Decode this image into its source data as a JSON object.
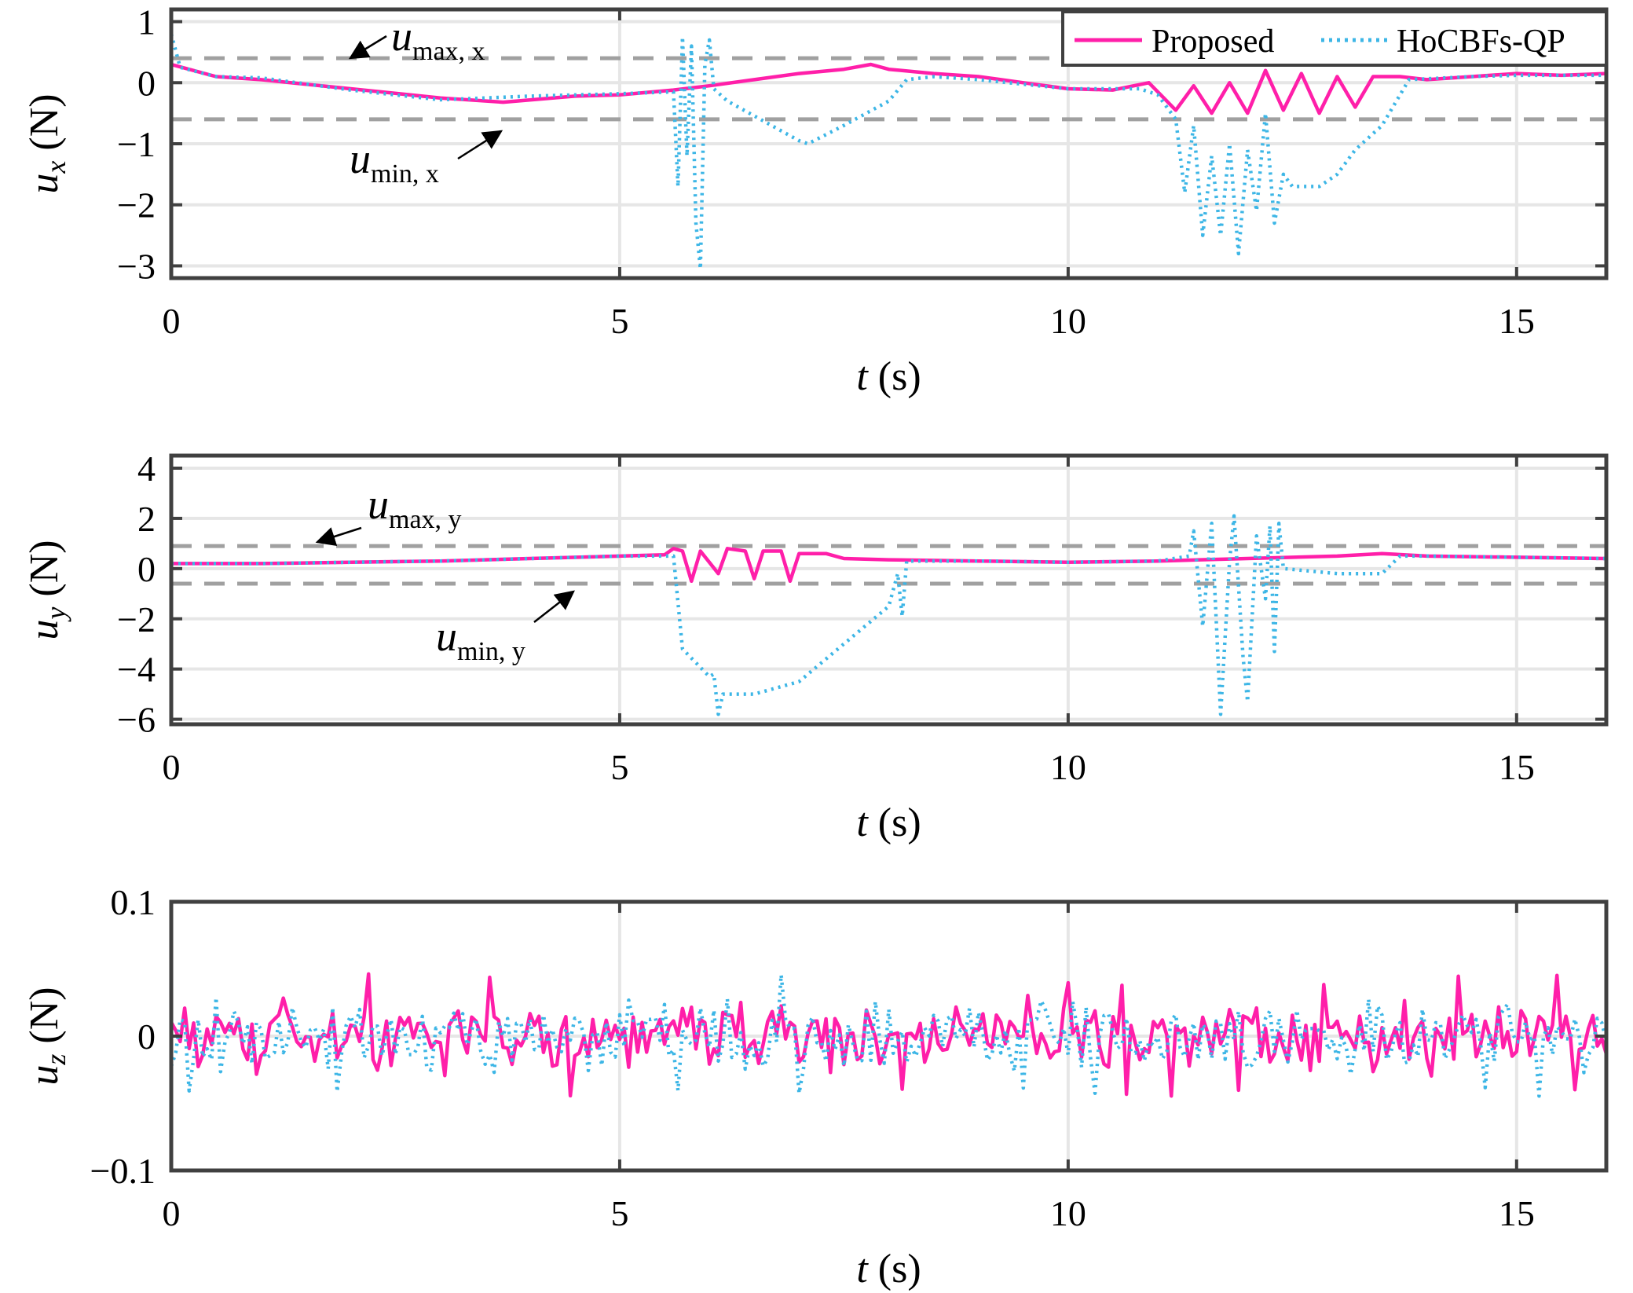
{
  "colors": {
    "proposed": "#ff1fa9",
    "hocbfs": "#3db6e6",
    "limit": "#a0a0a0",
    "grid": "#e6e6e6",
    "axes": "#404040"
  },
  "legend": {
    "proposed_label": "Proposed",
    "hocbfs_label": "HoCBFs-QP",
    "placement": "top-right of first panel"
  },
  "annotations": {
    "umax_x": {
      "sym": "u",
      "sub": "max, x"
    },
    "umin_x": {
      "sym": "u",
      "sub": "min, x"
    },
    "umax_y": {
      "sym": "u",
      "sub": "max, y"
    },
    "umin_y": {
      "sym": "u",
      "sub": "min, y"
    }
  },
  "chart_data": [
    {
      "type": "line",
      "ylabel_sym": "u",
      "ylabel_sub": "x",
      "ylabel_unit": "(N)",
      "xlabel_sym": "t",
      "xlabel_unit": "(s)",
      "xlim": [
        0,
        16
      ],
      "ylim": [
        -3.2,
        1.2
      ],
      "xticks": [
        "0",
        "5",
        "10",
        "15"
      ],
      "xtick_values": [
        0,
        5,
        10,
        15
      ],
      "yticks": [
        "1",
        "0",
        "−1",
        "−2",
        "−3"
      ],
      "ytick_values": [
        1,
        0,
        -1,
        -2,
        -3
      ],
      "grid": true,
      "limits": {
        "max": 0.4,
        "min": -0.6
      },
      "series": [
        {
          "name": "Proposed",
          "style": "solid",
          "points": [
            [
              0,
              0.3
            ],
            [
              0.5,
              0.1
            ],
            [
              1,
              0.05
            ],
            [
              2,
              -0.1
            ],
            [
              3,
              -0.25
            ],
            [
              3.7,
              -0.32
            ],
            [
              4.5,
              -0.22
            ],
            [
              5,
              -0.2
            ],
            [
              5.6,
              -0.12
            ],
            [
              6,
              -0.05
            ],
            [
              6.5,
              0.05
            ],
            [
              7,
              0.15
            ],
            [
              7.5,
              0.22
            ],
            [
              7.8,
              0.3
            ],
            [
              8,
              0.22
            ],
            [
              8.5,
              0.15
            ],
            [
              9,
              0.1
            ],
            [
              9.5,
              0.0
            ],
            [
              10,
              -0.1
            ],
            [
              10.5,
              -0.12
            ],
            [
              10.9,
              0.0
            ],
            [
              11.2,
              -0.45
            ],
            [
              11.4,
              -0.05
            ],
            [
              11.6,
              -0.5
            ],
            [
              11.8,
              0.0
            ],
            [
              12.0,
              -0.5
            ],
            [
              12.2,
              0.2
            ],
            [
              12.4,
              -0.45
            ],
            [
              12.6,
              0.15
            ],
            [
              12.8,
              -0.5
            ],
            [
              13.0,
              0.1
            ],
            [
              13.2,
              -0.4
            ],
            [
              13.4,
              0.1
            ],
            [
              13.7,
              0.1
            ],
            [
              14,
              0.05
            ],
            [
              14.5,
              0.1
            ],
            [
              15,
              0.15
            ],
            [
              15.5,
              0.12
            ],
            [
              16,
              0.15
            ]
          ]
        },
        {
          "name": "HoCBFs-QP",
          "style": "dotted",
          "points": [
            [
              0,
              0.8
            ],
            [
              0.1,
              0.25
            ],
            [
              0.5,
              0.1
            ],
            [
              1,
              0.08
            ],
            [
              2,
              -0.12
            ],
            [
              3,
              -0.28
            ],
            [
              4,
              -0.22
            ],
            [
              5,
              -0.18
            ],
            [
              5.6,
              -0.15
            ],
            [
              5.65,
              -1.7
            ],
            [
              5.7,
              0.75
            ],
            [
              5.75,
              -1.2
            ],
            [
              5.8,
              0.6
            ],
            [
              5.85,
              -2.3
            ],
            [
              5.9,
              -3.05
            ],
            [
              5.95,
              0.3
            ],
            [
              6.0,
              0.7
            ],
            [
              6.05,
              -0.1
            ],
            [
              6.2,
              -0.3
            ],
            [
              7,
              -0.95
            ],
            [
              7.1,
              -1.0
            ],
            [
              7.5,
              -0.7
            ],
            [
              8.0,
              -0.3
            ],
            [
              8.2,
              0.05
            ],
            [
              8.5,
              0.1
            ],
            [
              9,
              0.05
            ],
            [
              10,
              -0.1
            ],
            [
              10.8,
              -0.1
            ],
            [
              11.0,
              -0.2
            ],
            [
              11.2,
              -0.6
            ],
            [
              11.3,
              -1.8
            ],
            [
              11.4,
              -0.7
            ],
            [
              11.5,
              -2.5
            ],
            [
              11.6,
              -1.2
            ],
            [
              11.7,
              -2.5
            ],
            [
              11.8,
              -1.0
            ],
            [
              11.9,
              -2.8
            ],
            [
              12.0,
              -1.1
            ],
            [
              12.1,
              -2.1
            ],
            [
              12.2,
              -0.5
            ],
            [
              12.3,
              -2.3
            ],
            [
              12.4,
              -1.5
            ],
            [
              12.5,
              -1.7
            ],
            [
              12.8,
              -1.7
            ],
            [
              13.0,
              -1.5
            ],
            [
              13.2,
              -1.1
            ],
            [
              13.5,
              -0.7
            ],
            [
              13.8,
              0.05
            ],
            [
              14.5,
              0.1
            ],
            [
              15,
              0.12
            ],
            [
              16,
              0.12
            ]
          ]
        }
      ]
    },
    {
      "type": "line",
      "ylabel_sym": "u",
      "ylabel_sub": "y",
      "ylabel_unit": "(N)",
      "xlabel_sym": "t",
      "xlabel_unit": "(s)",
      "xlim": [
        0,
        16
      ],
      "ylim": [
        -6.2,
        4.5
      ],
      "xticks": [
        "0",
        "5",
        "10",
        "15"
      ],
      "xtick_values": [
        0,
        5,
        10,
        15
      ],
      "yticks": [
        "4",
        "2",
        "0",
        "−2",
        "−4",
        "−6"
      ],
      "ytick_values": [
        4,
        2,
        0,
        -2,
        -4,
        -6
      ],
      "grid": true,
      "limits": {
        "max": 0.9,
        "min": -0.6
      },
      "series": [
        {
          "name": "Proposed",
          "style": "solid",
          "points": [
            [
              0,
              0.2
            ],
            [
              1,
              0.2
            ],
            [
              2,
              0.25
            ],
            [
              3,
              0.3
            ],
            [
              4,
              0.4
            ],
            [
              5,
              0.5
            ],
            [
              5.5,
              0.55
            ],
            [
              5.6,
              0.8
            ],
            [
              5.7,
              0.7
            ],
            [
              5.8,
              -0.5
            ],
            [
              5.9,
              0.7
            ],
            [
              6.1,
              -0.2
            ],
            [
              6.2,
              0.8
            ],
            [
              6.4,
              0.7
            ],
            [
              6.5,
              -0.4
            ],
            [
              6.6,
              0.7
            ],
            [
              6.8,
              0.7
            ],
            [
              6.9,
              -0.5
            ],
            [
              7.0,
              0.6
            ],
            [
              7.3,
              0.6
            ],
            [
              7.5,
              0.4
            ],
            [
              8,
              0.35
            ],
            [
              9,
              0.3
            ],
            [
              10,
              0.25
            ],
            [
              11,
              0.3
            ],
            [
              12,
              0.4
            ],
            [
              13,
              0.5
            ],
            [
              13.5,
              0.6
            ],
            [
              14,
              0.5
            ],
            [
              15,
              0.45
            ],
            [
              16,
              0.4
            ]
          ]
        },
        {
          "name": "HoCBFs-QP",
          "style": "dotted",
          "points": [
            [
              0,
              0.2
            ],
            [
              1,
              0.2
            ],
            [
              2,
              0.25
            ],
            [
              3,
              0.3
            ],
            [
              4,
              0.4
            ],
            [
              5,
              0.5
            ],
            [
              5.6,
              0.5
            ],
            [
              5.7,
              -3.2
            ],
            [
              6.0,
              -4.3
            ],
            [
              6.05,
              -4.2
            ],
            [
              6.1,
              -5.8
            ],
            [
              6.15,
              -5.0
            ],
            [
              6.5,
              -5.0
            ],
            [
              7,
              -4.5
            ],
            [
              7.5,
              -3.0
            ],
            [
              8.0,
              -1.5
            ],
            [
              8.1,
              -0.2
            ],
            [
              8.15,
              -1.9
            ],
            [
              8.2,
              0.3
            ],
            [
              9,
              0.3
            ],
            [
              10,
              0.25
            ],
            [
              11,
              0.3
            ],
            [
              11.35,
              0.5
            ],
            [
              11.4,
              1.5
            ],
            [
              11.5,
              -2.3
            ],
            [
              11.6,
              1.8
            ],
            [
              11.7,
              -5.8
            ],
            [
              11.8,
              0.3
            ],
            [
              11.85,
              2.1
            ],
            [
              11.95,
              -3.5
            ],
            [
              12.0,
              -5.3
            ],
            [
              12.1,
              1.3
            ],
            [
              12.2,
              -1.2
            ],
            [
              12.25,
              1.7
            ],
            [
              12.3,
              -3.3
            ],
            [
              12.35,
              1.8
            ],
            [
              12.4,
              0.0
            ],
            [
              13,
              -0.2
            ],
            [
              13.5,
              -0.2
            ],
            [
              13.7,
              0.5
            ],
            [
              14,
              0.5
            ],
            [
              15,
              0.45
            ],
            [
              16,
              0.4
            ]
          ]
        }
      ]
    },
    {
      "type": "line",
      "ylabel_sym": "u",
      "ylabel_sub": "z",
      "ylabel_unit": "(N)",
      "xlabel_sym": "t",
      "xlabel_unit": "(s)",
      "xlim": [
        0,
        16
      ],
      "ylim": [
        -0.1,
        0.1
      ],
      "xticks": [
        "0",
        "5",
        "10",
        "15"
      ],
      "xtick_values": [
        0,
        5,
        10,
        15
      ],
      "yticks": [
        "0.1",
        "0",
        "−0.1"
      ],
      "ytick_values": [
        0.1,
        0,
        -0.1
      ],
      "grid": true,
      "noise": {
        "amplitude": 0.022,
        "peak": 0.047,
        "samples": 320
      }
    }
  ]
}
